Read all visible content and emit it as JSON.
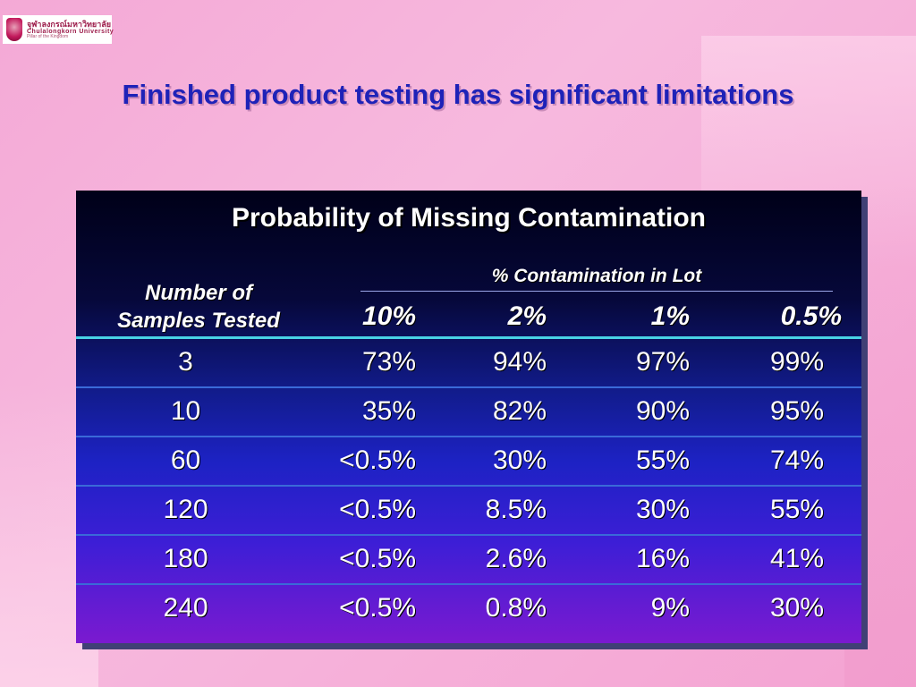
{
  "logo": {
    "thai": "จุฬาลงกรณ์มหาวิทยาลัย",
    "english": "Chulalongkorn University",
    "tagline": "Pillar of the Kingdom"
  },
  "slide_title": "Finished product testing has significant limitations",
  "table": {
    "title": "Probability of Missing Contamination",
    "row_header_line1": "Number of",
    "row_header_line2": "Samples Tested",
    "column_group_header": "% Contamination in Lot",
    "columns": [
      "10%",
      "2%",
      "1%",
      "0.5%"
    ],
    "rows": [
      {
        "samples": "3",
        "values": [
          "73%",
          "94%",
          "97%",
          "99%"
        ]
      },
      {
        "samples": "10",
        "values": [
          "35%",
          "82%",
          "90%",
          "95%"
        ]
      },
      {
        "samples": "60",
        "values": [
          "<0.5%",
          "30%",
          "55%",
          "74%"
        ]
      },
      {
        "samples": "120",
        "values": [
          "<0.5%",
          "8.5%",
          "30%",
          "55%"
        ]
      },
      {
        "samples": "180",
        "values": [
          "<0.5%",
          "2.6%",
          "16%",
          "41%"
        ]
      },
      {
        "samples": "240",
        "values": [
          "<0.5%",
          "0.8%",
          "9%",
          "30%"
        ]
      }
    ]
  },
  "colors": {
    "title_blue": "#1e22b8",
    "background_pink": "#f4a9d6",
    "divider_cyan": "#48d2e6"
  }
}
